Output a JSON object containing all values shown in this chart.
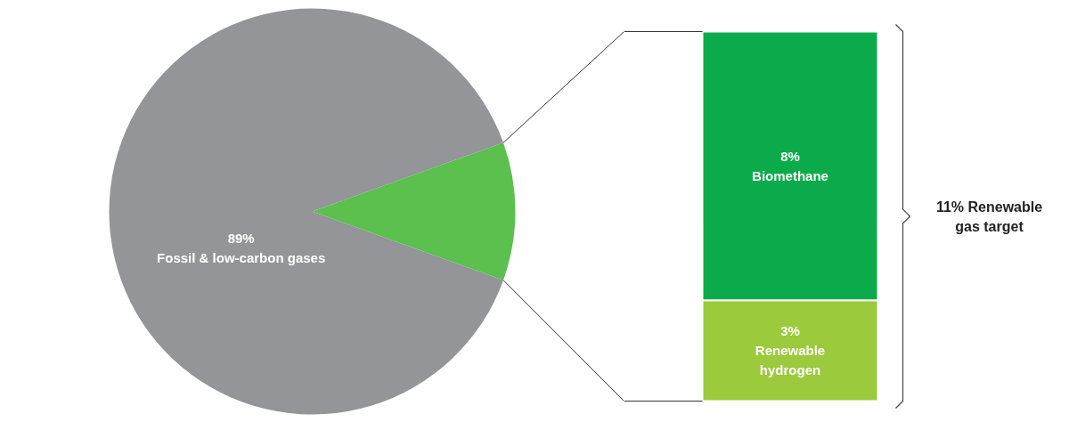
{
  "chart_data": [
    {
      "type": "pie",
      "categories": [
        "Fossil & low-carbon gases",
        null
      ],
      "values": [
        89,
        11
      ],
      "colors": [
        "#939598",
        "#5cc04f"
      ],
      "value_labels": [
        "89%",
        null
      ]
    },
    {
      "type": "bar",
      "stacked": true,
      "categories": [
        null
      ],
      "tick_labels": false,
      "series": [
        {
          "name": "Renewable hydrogen",
          "color": "#9bca3c",
          "values": [
            3
          ],
          "value_labels": [
            "3%"
          ]
        },
        {
          "name": "Biomethane",
          "color": "#0bab4b",
          "values": [
            8
          ],
          "value_labels": [
            "8%"
          ]
        }
      ],
      "annotations": [
        "11% Renewable gas target"
      ]
    }
  ]
}
